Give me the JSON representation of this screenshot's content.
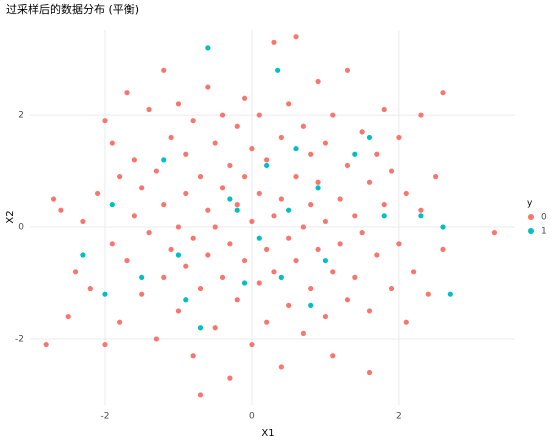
{
  "chart_data": {
    "type": "scatter",
    "title": "过采样后的数据分布 (平衡)",
    "x_label": "X1",
    "y_label": "X2",
    "legend_title": "y",
    "legend_position": "right",
    "grid": true,
    "xlim": [
      -3.02,
      3.58
    ],
    "ylim": [
      -3.18,
      3.52
    ],
    "xticks": [
      -2,
      0,
      2
    ],
    "yticks": [
      -2,
      0,
      2
    ],
    "series": [
      {
        "name": "0",
        "color": "#F8766D",
        "x": [
          -2.8,
          -2.7,
          -2.6,
          -2.5,
          -2.4,
          -2.3,
          -2.2,
          -2.1,
          -2.0,
          -2.0,
          -1.9,
          -1.9,
          -1.8,
          -1.8,
          -1.7,
          -1.7,
          -1.6,
          -1.6,
          -1.5,
          -1.5,
          -1.4,
          -1.4,
          -1.3,
          -1.3,
          -1.2,
          -1.2,
          -1.2,
          -1.1,
          -1.1,
          -1.0,
          -1.0,
          -1.0,
          -0.9,
          -0.9,
          -0.9,
          -0.8,
          -0.8,
          -0.8,
          -0.7,
          -0.7,
          -0.7,
          -0.6,
          -0.6,
          -0.6,
          -0.5,
          -0.5,
          -0.5,
          -0.4,
          -0.4,
          -0.4,
          -0.3,
          -0.3,
          -0.3,
          -0.2,
          -0.2,
          -0.2,
          -0.1,
          -0.1,
          -0.1,
          0.0,
          0.0,
          0.0,
          0.1,
          0.1,
          0.1,
          0.2,
          0.2,
          0.2,
          0.3,
          0.3,
          0.3,
          0.4,
          0.4,
          0.4,
          0.5,
          0.5,
          0.5,
          0.6,
          0.6,
          0.6,
          0.7,
          0.7,
          0.7,
          0.8,
          0.8,
          0.8,
          0.9,
          0.9,
          0.9,
          1.0,
          1.0,
          1.0,
          1.1,
          1.1,
          1.1,
          1.2,
          1.2,
          1.3,
          1.3,
          1.3,
          1.4,
          1.4,
          1.5,
          1.5,
          1.6,
          1.6,
          1.6,
          1.7,
          1.7,
          1.8,
          1.8,
          1.9,
          1.9,
          2.0,
          2.0,
          2.1,
          2.1,
          2.2,
          2.3,
          2.3,
          2.4,
          2.5,
          2.6,
          2.6,
          3.3
        ],
        "values": [
          -2.1,
          0.5,
          0.3,
          -1.6,
          -0.8,
          0.1,
          -1.1,
          0.6,
          1.9,
          -2.1,
          1.5,
          -0.3,
          0.9,
          -1.7,
          2.4,
          -0.6,
          1.2,
          0.2,
          -1.2,
          0.7,
          2.1,
          -0.1,
          -2.0,
          1.0,
          2.8,
          0.4,
          -0.9,
          1.6,
          -0.4,
          2.2,
          0.0,
          -1.5,
          1.3,
          -0.7,
          0.6,
          -2.3,
          1.9,
          -0.2,
          -3.0,
          0.9,
          -1.1,
          2.5,
          0.3,
          -0.5,
          1.5,
          -1.8,
          0.0,
          2.0,
          -0.9,
          0.7,
          -2.7,
          1.1,
          -0.3,
          1.8,
          -1.3,
          0.4,
          2.3,
          -0.6,
          0.9,
          -2.1,
          0.1,
          1.4,
          -1.0,
          0.6,
          2.0,
          -0.4,
          1.2,
          -1.7,
          3.3,
          0.2,
          -0.8,
          1.6,
          -2.5,
          0.5,
          -0.2,
          2.2,
          -1.4,
          3.4,
          0.9,
          -0.6,
          1.8,
          -1.9,
          0.0,
          -1.1,
          1.3,
          0.4,
          2.6,
          -0.4,
          0.8,
          -1.6,
          1.5,
          0.1,
          -0.8,
          2.0,
          -2.3,
          0.5,
          -0.3,
          1.1,
          -1.3,
          2.8,
          0.2,
          -0.9,
          1.7,
          -0.1,
          -2.6,
          0.8,
          -1.5,
          1.3,
          -0.5,
          2.1,
          0.4,
          -1.1,
          1.0,
          -0.3,
          1.6,
          0.6,
          -1.7,
          -0.8,
          0.3,
          2.0,
          -1.2,
          0.9,
          2.4,
          -0.4,
          -0.1
        ]
      },
      {
        "name": "1",
        "color": "#00BFC4",
        "x": [
          -2.3,
          -2.0,
          -1.9,
          -1.5,
          -1.2,
          -1.0,
          -0.9,
          -0.7,
          -0.6,
          -0.3,
          -0.1,
          0.1,
          0.2,
          0.35,
          0.5,
          0.6,
          0.8,
          0.9,
          1.0,
          1.4,
          1.6,
          1.8,
          2.3,
          2.6,
          2.7,
          -0.2,
          0.4
        ],
        "values": [
          -0.5,
          -1.2,
          0.4,
          -0.9,
          1.2,
          -0.5,
          -1.3,
          -1.8,
          3.2,
          0.5,
          -1.0,
          -0.2,
          1.1,
          2.8,
          0.3,
          1.4,
          -1.4,
          0.7,
          -0.6,
          1.3,
          1.6,
          0.2,
          0.2,
          0.0,
          -1.2,
          0.3,
          -0.9
        ]
      }
    ]
  }
}
